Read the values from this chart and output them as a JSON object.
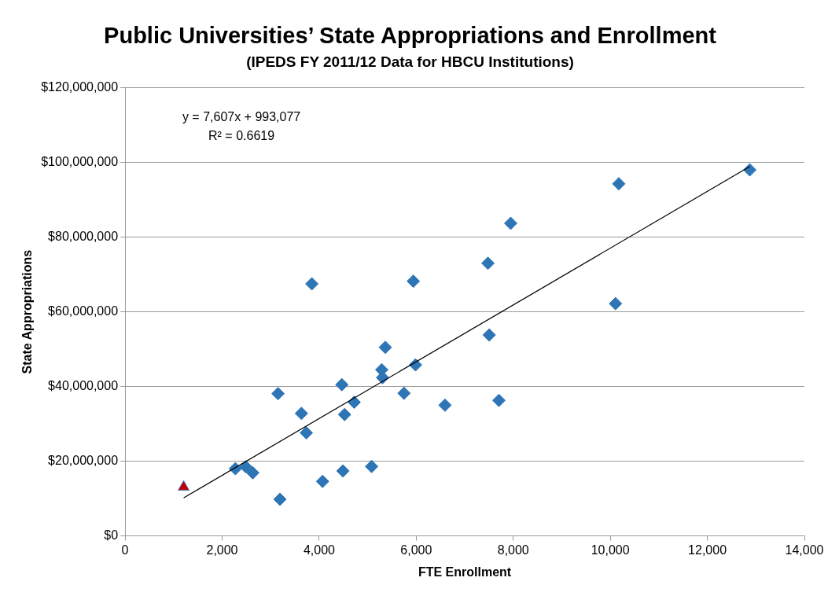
{
  "chart_data": {
    "type": "scatter",
    "title": "Public Universities’ State Appropriations and Enrollment",
    "subtitle": "(IPEDS FY 2011/12 Data for HBCU Institutions)",
    "xlabel": "FTE Enrollment",
    "ylabel": "State Appropriations",
    "annotations": [
      "y = 7,607x + 993,077",
      "R² = 0.6619"
    ],
    "series": [
      {
        "color": "#2e75b6",
        "marker": "diamond",
        "x": [
          2274,
          2488,
          2631,
          3192,
          3152,
          3634,
          3736,
          3849,
          4070,
          4467,
          4524,
          4490,
          4722,
          5080,
          5289,
          5306,
          5363,
          5748,
          5940,
          5986,
          6593,
          7947,
          7478,
          7505,
          7704,
          10175,
          10107,
          12874
        ],
        "values": [
          18000000,
          18500000,
          16900000,
          9800000,
          38100000,
          32800000,
          27600000,
          67500000,
          14600000,
          40500000,
          32500000,
          17400000,
          35800000,
          18600000,
          44500000,
          42400000,
          50500000,
          38200000,
          68200000,
          45800000,
          35000000,
          83700000,
          73000000,
          53800000,
          36300000,
          94300000,
          62200000,
          98000000
        ]
      },
      {
        "color": "#c00000",
        "marker": "triangle",
        "x": [
          1207
        ],
        "values": [
          13100000
        ]
      },
      {
        "type": "line",
        "color": "#000000",
        "marker": "none",
        "x": [
          1207,
          12874
        ],
        "values": [
          10200000,
          98900000
        ]
      }
    ],
    "xlim": [
      0,
      14000
    ],
    "xticks": [
      0,
      {
        "value": 2000,
        "label": "2,000"
      },
      {
        "value": 4000,
        "label": "4,000"
      },
      {
        "value": 6000,
        "label": "6,000"
      },
      {
        "value": 8000,
        "label": "8,000"
      },
      {
        "value": 10000,
        "label": "10,000"
      },
      {
        "value": 12000,
        "label": "12,000"
      },
      {
        "value": 14000,
        "label": "14,000"
      }
    ],
    "ylim": [
      0,
      120000000
    ],
    "yticks": [
      {
        "value": 0,
        "label": "$0"
      },
      {
        "value": 20000000,
        "label": "$20,000,000"
      },
      {
        "value": 40000000,
        "label": "$40,000,000"
      },
      {
        "value": 60000000,
        "label": "$60,000,000"
      },
      {
        "value": 80000000,
        "label": "$80,000,000"
      },
      {
        "value": 100000000,
        "label": "$100,000,000"
      },
      {
        "value": 120000000,
        "label": "$120,000,000"
      }
    ],
    "grid": "y",
    "legend": false
  }
}
